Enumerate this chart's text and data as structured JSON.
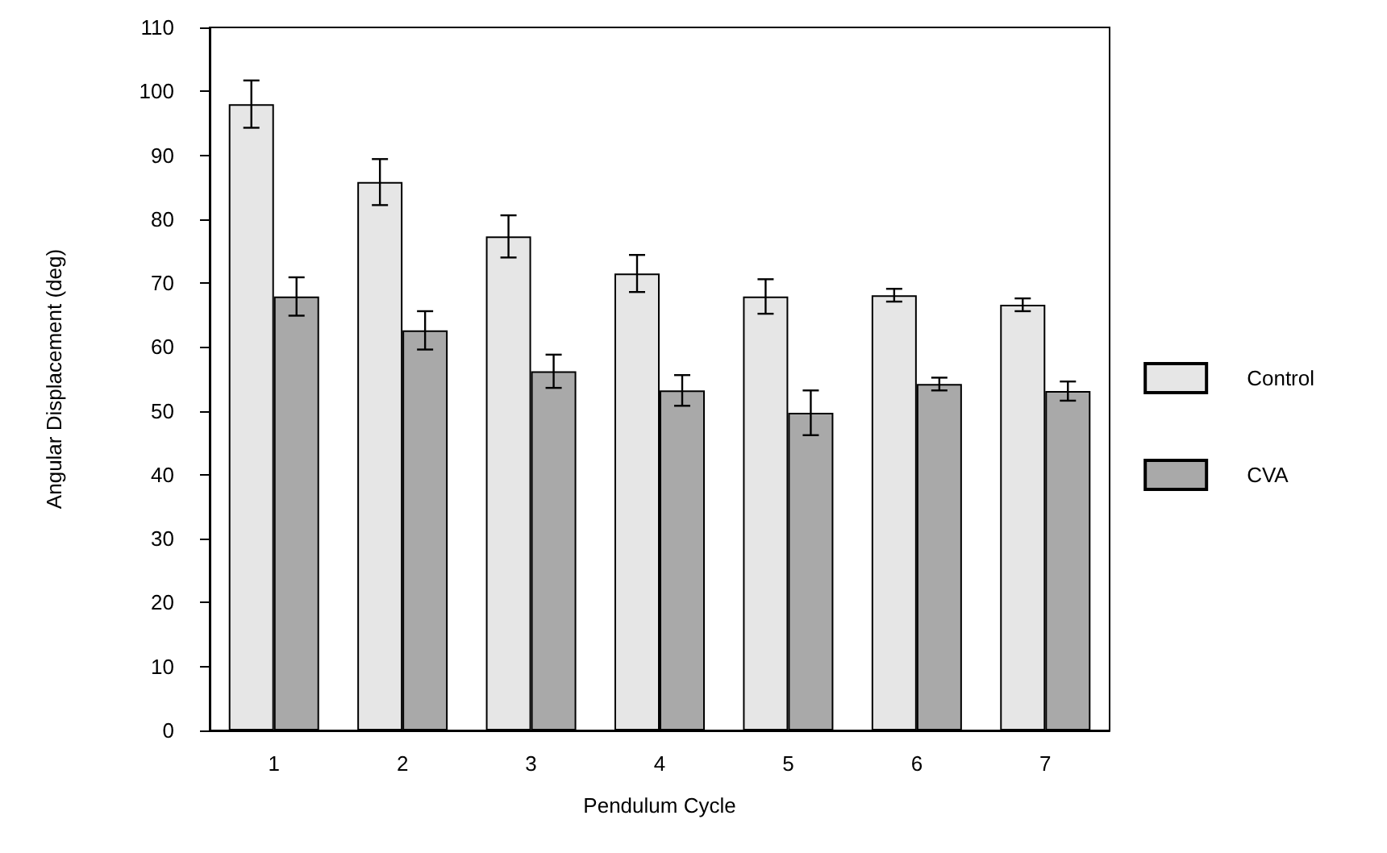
{
  "chart_data": {
    "type": "bar",
    "xlabel": "Pendulum Cycle",
    "ylabel": "Angular Displacement (deg)",
    "categories": [
      "1",
      "2",
      "3",
      "4",
      "5",
      "6",
      "7"
    ],
    "series": [
      {
        "name": "Control",
        "color": "#e6e6e6",
        "values": [
          98,
          85.8,
          77.3,
          71.5,
          67.9,
          68.1,
          66.6
        ],
        "errors": [
          3.7,
          3.6,
          3.3,
          2.9,
          2.7,
          1,
          1
        ]
      },
      {
        "name": "CVA",
        "color": "#a9a9a9",
        "values": [
          67.9,
          62.6,
          56.2,
          53.2,
          49.7,
          54.2,
          53.1
        ],
        "errors": [
          3,
          3,
          2.6,
          2.4,
          3.5,
          1,
          1.5
        ]
      }
    ],
    "ylim": [
      0,
      110
    ],
    "yticks": [
      0,
      10,
      20,
      30,
      40,
      50,
      60,
      70,
      80,
      90,
      100,
      110
    ],
    "grid": false,
    "legend": "right"
  }
}
